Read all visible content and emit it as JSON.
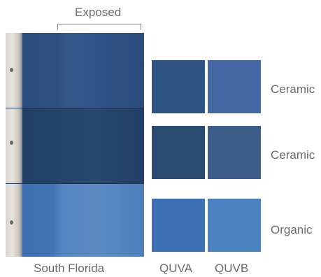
{
  "exposed_label": "Exposed",
  "captions": {
    "south_florida": "South Florida",
    "quva": "QUVA",
    "quvb": "QUVB"
  },
  "rows": [
    {
      "coating": "Ceramic",
      "quva_color": "#2f5384",
      "quvb_color": "#4466a2"
    },
    {
      "coating": "Ceramic",
      "quva_color": "#2b4a70",
      "quvb_color": "#3c5b86"
    },
    {
      "coating": "Organic",
      "quva_color": "#3d6fb3",
      "quvb_color": "#4a82c0"
    }
  ]
}
